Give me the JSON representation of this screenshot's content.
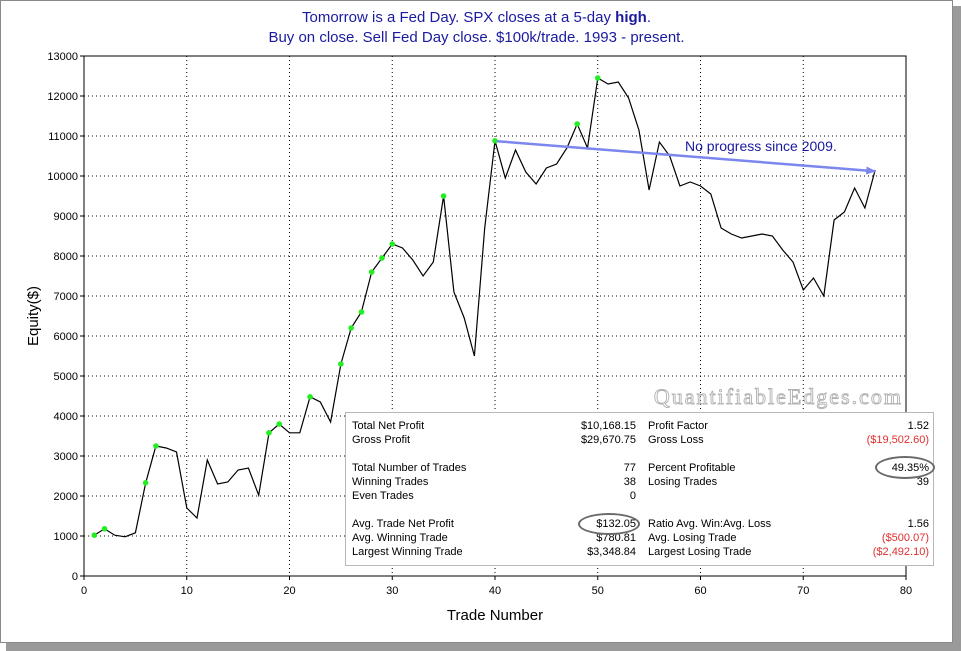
{
  "title": {
    "line1_pre": "Tomorrow is a Fed Day. SPX closes at a 5-day ",
    "line1_bold": "high",
    "line1_post": ".",
    "line2": "Buy on close. Sell Fed Day close. $100k/trade. 1993 - present."
  },
  "watermark": "QuantifiableEdges.com",
  "chart_data": {
    "type": "line",
    "title": "Tomorrow is a Fed Day. SPX closes at a 5-day high. Buy on close. Sell Fed Day close. $100k/trade. 1993 - present.",
    "xlabel": "Trade Number",
    "ylabel": "Equity($)",
    "xlim": [
      0,
      80
    ],
    "ylim": [
      0,
      13000
    ],
    "xticks": [
      0,
      10,
      20,
      30,
      40,
      50,
      60,
      70,
      80
    ],
    "yticks": [
      0,
      1000,
      2000,
      3000,
      4000,
      5000,
      6000,
      7000,
      8000,
      9000,
      10000,
      11000,
      12000,
      13000
    ],
    "grid": true,
    "series": [
      {
        "color": "#000000",
        "x": [
          1,
          2,
          3,
          4,
          5,
          6,
          7,
          8,
          9,
          10,
          11,
          12,
          13,
          14,
          15,
          16,
          17,
          18,
          19,
          20,
          21,
          22,
          23,
          24,
          25,
          26,
          27,
          28,
          29,
          30,
          31,
          32,
          33,
          34,
          35,
          36,
          37,
          38,
          39,
          40,
          41,
          42,
          43,
          44,
          45,
          46,
          47,
          48,
          49,
          50,
          51,
          52,
          53,
          54,
          55,
          56,
          57,
          58,
          59,
          60,
          61,
          62,
          63,
          64,
          65,
          66,
          67,
          68,
          69,
          70,
          71,
          72,
          73,
          74,
          75,
          76,
          77
        ],
        "y": [
          1020,
          1180,
          1020,
          980,
          1080,
          2330,
          3250,
          3200,
          3100,
          1700,
          1450,
          2900,
          2300,
          2350,
          2650,
          2700,
          2020,
          3580,
          3800,
          3580,
          3580,
          4480,
          4350,
          3850,
          5300,
          6200,
          6600,
          7600,
          7950,
          8300,
          8200,
          7900,
          7500,
          7850,
          9500,
          7100,
          6450,
          5500,
          8700,
          10880,
          9950,
          10650,
          10100,
          9800,
          10200,
          10300,
          10700,
          11300,
          10700,
          12450,
          12300,
          12350,
          11950,
          11150,
          9650,
          10850,
          10500,
          9750,
          9850,
          9750,
          9550,
          8700,
          8550,
          8450,
          8500,
          8550,
          8500,
          8150,
          7850,
          7150,
          7450,
          7000,
          8900,
          9100,
          9700,
          9200,
          10150
        ]
      }
    ],
    "highs_marked_x": [
      1,
      2,
      6,
      7,
      18,
      19,
      22,
      25,
      26,
      27,
      28,
      29,
      30,
      35,
      40,
      48,
      50
    ],
    "highs_marker_color": "#22ee22",
    "annotation": {
      "text": "No progress since 2009.",
      "arrow_from": [
        40.2,
        10870
      ],
      "arrow_to": [
        77,
        10120
      ],
      "color": "#1a1aa0",
      "arrow_color": "#7b86ee"
    }
  },
  "stats": {
    "left": [
      {
        "label": "Total Net Profit",
        "value": "$10,168.15",
        "negative": false
      },
      {
        "label": "Gross Profit",
        "value": "$29,670.75",
        "negative": false
      },
      {
        "label": "Total Number of Trades",
        "value": "77",
        "negative": false
      },
      {
        "label": "Winning Trades",
        "value": "38",
        "negative": false
      },
      {
        "label": "Even Trades",
        "value": "0",
        "negative": false
      },
      {
        "label": "Avg. Trade Net Profit",
        "value": "$132.05",
        "negative": false
      },
      {
        "label": "Avg. Winning Trade",
        "value": "$780.81",
        "negative": false
      },
      {
        "label": "Largest Winning Trade",
        "value": "$3,348.84",
        "negative": false
      }
    ],
    "right": [
      {
        "label": "Profit Factor",
        "value": "1.52",
        "negative": false
      },
      {
        "label": "Gross Loss",
        "value": "($19,502.60)",
        "negative": true
      },
      {
        "label": "Percent Profitable",
        "value": "49.35%",
        "negative": false
      },
      {
        "label": "Losing Trades",
        "value": "39",
        "negative": false
      },
      {
        "label": "",
        "value": "",
        "negative": false
      },
      {
        "label": "Ratio Avg. Win:Avg. Loss",
        "value": "1.56",
        "negative": false
      },
      {
        "label": "Avg. Losing Trade",
        "value": "($500.07)",
        "negative": true
      },
      {
        "label": "Largest Losing Trade",
        "value": "($2,492.10)",
        "negative": true
      }
    ],
    "circled": [
      "Avg. Trade Net Profit",
      "Percent Profitable"
    ]
  }
}
